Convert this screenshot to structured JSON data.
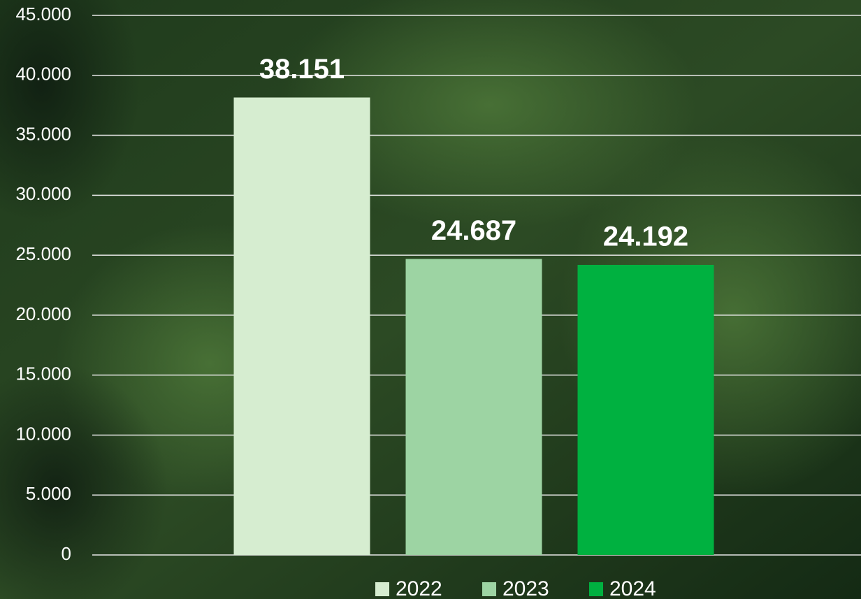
{
  "chart_data": {
    "type": "bar",
    "categories": [
      null
    ],
    "series": [
      {
        "name": "2022",
        "color": "#d6edd0",
        "values": [
          38151
        ],
        "value_labels": [
          "38.151"
        ]
      },
      {
        "name": "2023",
        "color": "#9dd4a3",
        "values": [
          24687
        ],
        "value_labels": [
          "24.687"
        ]
      },
      {
        "name": "2024",
        "color": "#00b140",
        "values": [
          24192
        ],
        "value_labels": [
          "24.192"
        ]
      }
    ],
    "ylim": [
      0,
      45000
    ],
    "yticks": [
      0,
      {
        "value": 5000,
        "label": "5.000"
      },
      {
        "value": 10000,
        "label": "10.000"
      },
      {
        "value": 15000,
        "label": "15.000"
      },
      {
        "value": 20000,
        "label": "20.000"
      },
      {
        "value": 25000,
        "label": "25.000"
      },
      {
        "value": 30000,
        "label": "30.000"
      },
      {
        "value": 35000,
        "label": "35.000"
      },
      {
        "value": 40000,
        "label": "40.000"
      },
      {
        "value": 45000,
        "label": "45.000"
      }
    ],
    "grid": true,
    "legend": "bottom"
  }
}
